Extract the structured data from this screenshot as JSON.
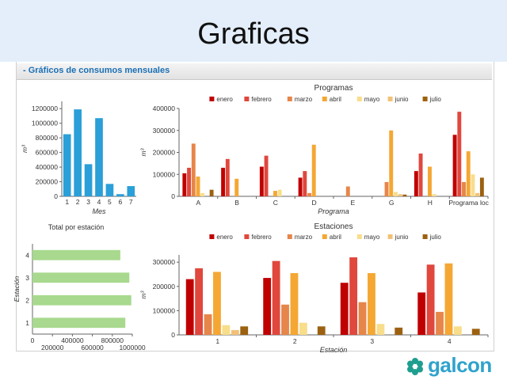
{
  "slide": {
    "title": "Graficas"
  },
  "section": {
    "title": "- Gráficos de consumos mensuales"
  },
  "logo": {
    "text": "galcon",
    "color": "#2fa3cc"
  },
  "colors": {
    "bar_blue": "#2a9fd8",
    "bar_green": "#a8d98e",
    "months": [
      "#c00000",
      "#e0473d",
      "#e6864a",
      "#f5a733",
      "#f8dd8b",
      "#f2c177",
      "#9c6110"
    ]
  },
  "chart_data": [
    {
      "type": "bar",
      "title": "",
      "xlabel": "Mes",
      "ylabel": "m³",
      "categories": [
        "1",
        "2",
        "3",
        "4",
        "5",
        "6",
        "7"
      ],
      "values": [
        850000,
        1190000,
        440000,
        1070000,
        170000,
        30000,
        140000
      ],
      "ylim": [
        0,
        1300000
      ],
      "yticks": [
        0,
        200000,
        400000,
        600000,
        800000,
        1000000,
        1200000
      ],
      "grid": false
    },
    {
      "type": "bar",
      "title": "Programas",
      "xlabel": "Programa",
      "ylabel": "m³",
      "legend": "top",
      "categories": [
        "A",
        "B",
        "C",
        "D",
        "E",
        "G",
        "H",
        "Programa loc"
      ],
      "series": [
        {
          "name": "enero",
          "values": [
            105000,
            130000,
            135000,
            85000,
            0,
            0,
            115000,
            280000
          ]
        },
        {
          "name": "febrero",
          "values": [
            130000,
            170000,
            185000,
            115000,
            0,
            0,
            195000,
            385000
          ]
        },
        {
          "name": "marzo",
          "values": [
            240000,
            0,
            0,
            15000,
            45000,
            65000,
            0,
            65000
          ]
        },
        {
          "name": "abril",
          "values": [
            90000,
            80000,
            25000,
            235000,
            0,
            300000,
            135000,
            205000
          ]
        },
        {
          "name": "mayo",
          "values": [
            15000,
            0,
            30000,
            0,
            0,
            20000,
            10000,
            100000
          ]
        },
        {
          "name": "junio",
          "values": [
            0,
            0,
            0,
            0,
            0,
            10000,
            0,
            15000
          ]
        },
        {
          "name": "julio",
          "values": [
            30000,
            0,
            0,
            0,
            0,
            8000,
            0,
            85000
          ]
        }
      ],
      "ylim": [
        0,
        400000
      ],
      "yticks": [
        0,
        100000,
        200000,
        300000,
        400000
      ],
      "grid": false
    },
    {
      "type": "bar",
      "orientation": "horizontal",
      "title": "Total por estación",
      "xlabel": "",
      "ylabel": "Estación",
      "categories": [
        "1",
        "2",
        "3",
        "4"
      ],
      "values": [
        930000,
        990000,
        970000,
        880000
      ],
      "xlim": [
        0,
        1000000
      ],
      "xticks": [
        200000,
        400000,
        600000,
        800000,
        1000000
      ],
      "grid": false
    },
    {
      "type": "bar",
      "title": "Estaciones",
      "xlabel": "Estación",
      "ylabel": "m³",
      "legend": "top",
      "categories": [
        "1",
        "2",
        "3",
        "4"
      ],
      "series": [
        {
          "name": "enero",
          "values": [
            230000,
            235000,
            215000,
            175000
          ]
        },
        {
          "name": "febrero",
          "values": [
            275000,
            305000,
            320000,
            290000
          ]
        },
        {
          "name": "marzo",
          "values": [
            85000,
            125000,
            135000,
            95000
          ]
        },
        {
          "name": "abril",
          "values": [
            260000,
            255000,
            255000,
            295000
          ]
        },
        {
          "name": "mayo",
          "values": [
            40000,
            50000,
            45000,
            35000
          ]
        },
        {
          "name": "junio",
          "values": [
            20000,
            0,
            0,
            0
          ]
        },
        {
          "name": "julio",
          "values": [
            35000,
            35000,
            30000,
            25000
          ]
        }
      ],
      "ylim": [
        0,
        330000
      ],
      "yticks": [
        0,
        100000,
        200000,
        300000
      ],
      "grid": false
    }
  ]
}
